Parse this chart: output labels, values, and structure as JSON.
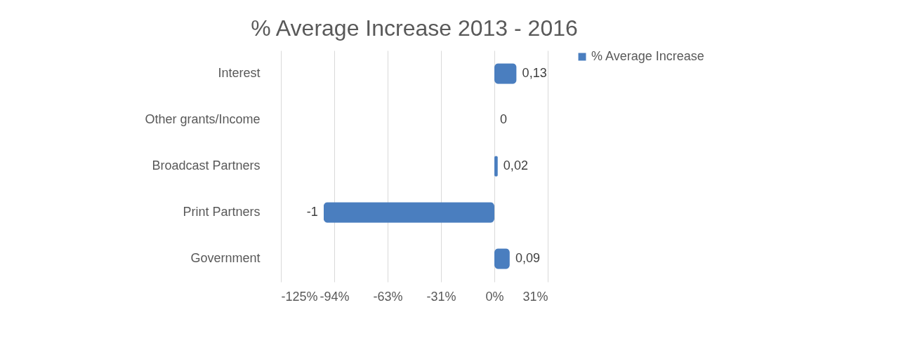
{
  "chart_data": {
    "type": "bar",
    "orientation": "horizontal",
    "title": "% Average Increase 2013 - 2016",
    "categories": [
      "Interest",
      "Other grants/Income",
      "Broadcast Partners",
      "Print Partners",
      "Government"
    ],
    "series": [
      {
        "name": "% Average Increase",
        "color": "#4a7ebf",
        "values": [
          0.13,
          0,
          0.02,
          -1,
          0.09
        ],
        "value_labels": [
          "0,13",
          "0",
          "0,02",
          "-1",
          "0,09"
        ]
      }
    ],
    "xlim": [
      -1.25,
      0.3125
    ],
    "xticks": [
      {
        "value": -1.25,
        "label": "-125%"
      },
      {
        "value": -0.9375,
        "label": "-94%"
      },
      {
        "value": -0.625,
        "label": "-63%"
      },
      {
        "value": -0.3125,
        "label": "-31%"
      },
      {
        "value": 0,
        "label": "0%"
      },
      {
        "value": 0.3125,
        "label": "31%"
      }
    ],
    "grid": "x",
    "legend": "right"
  }
}
